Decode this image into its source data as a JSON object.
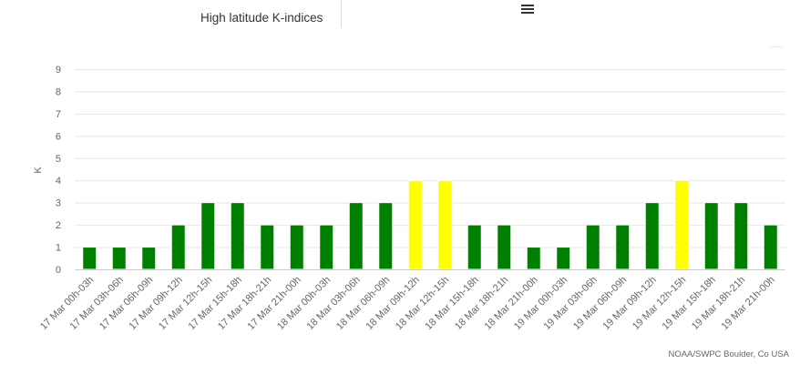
{
  "header": {
    "title": "High latitude K-indices",
    "menu_icon": "hamburger-menu-icon"
  },
  "credit": "NOAA/SWPC Boulder, Co USA",
  "colors": {
    "green": "#008000",
    "yellow": "#ffff00",
    "gridline": "#e6e6e6",
    "axis_text": "#666666"
  },
  "chart_data": {
    "type": "bar",
    "title": "High latitude K-indices",
    "xlabel": "",
    "ylabel": "K",
    "ylim": [
      0,
      9
    ],
    "yticks": [
      0,
      1,
      2,
      3,
      4,
      5,
      6,
      7,
      8,
      9
    ],
    "grid": true,
    "legend": "none",
    "categories": [
      "17 Mar 00h-03h",
      "17 Mar 03h-06h",
      "17 Mar 06h-09h",
      "17 Mar 09h-12h",
      "17 Mar 12h-15h",
      "17 Mar 15h-18h",
      "17 Mar 18h-21h",
      "17 Mar 21h-00h",
      "18 Mar 00h-03h",
      "18 Mar 03h-06h",
      "18 Mar 06h-09h",
      "18 Mar 09h-12h",
      "18 Mar 12h-15h",
      "18 Mar 15h-18h",
      "18 Mar 18h-21h",
      "18 Mar 21h-00h",
      "19 Mar 00h-03h",
      "19 Mar 03h-06h",
      "19 Mar 06h-09h",
      "19 Mar 09h-12h",
      "19 Mar 12h-15h",
      "19 Mar 15h-18h",
      "19 Mar 18h-21h",
      "19 Mar 21h-00h"
    ],
    "values": [
      1,
      1,
      1,
      2,
      3,
      3,
      2,
      2,
      2,
      3,
      3,
      4,
      4,
      2,
      2,
      1,
      1,
      2,
      2,
      3,
      4,
      3,
      3,
      2
    ],
    "bar_colors": [
      "#008000",
      "#008000",
      "#008000",
      "#008000",
      "#008000",
      "#008000",
      "#008000",
      "#008000",
      "#008000",
      "#008000",
      "#008000",
      "#ffff00",
      "#ffff00",
      "#008000",
      "#008000",
      "#008000",
      "#008000",
      "#008000",
      "#008000",
      "#008000",
      "#ffff00",
      "#008000",
      "#008000",
      "#008000"
    ]
  }
}
